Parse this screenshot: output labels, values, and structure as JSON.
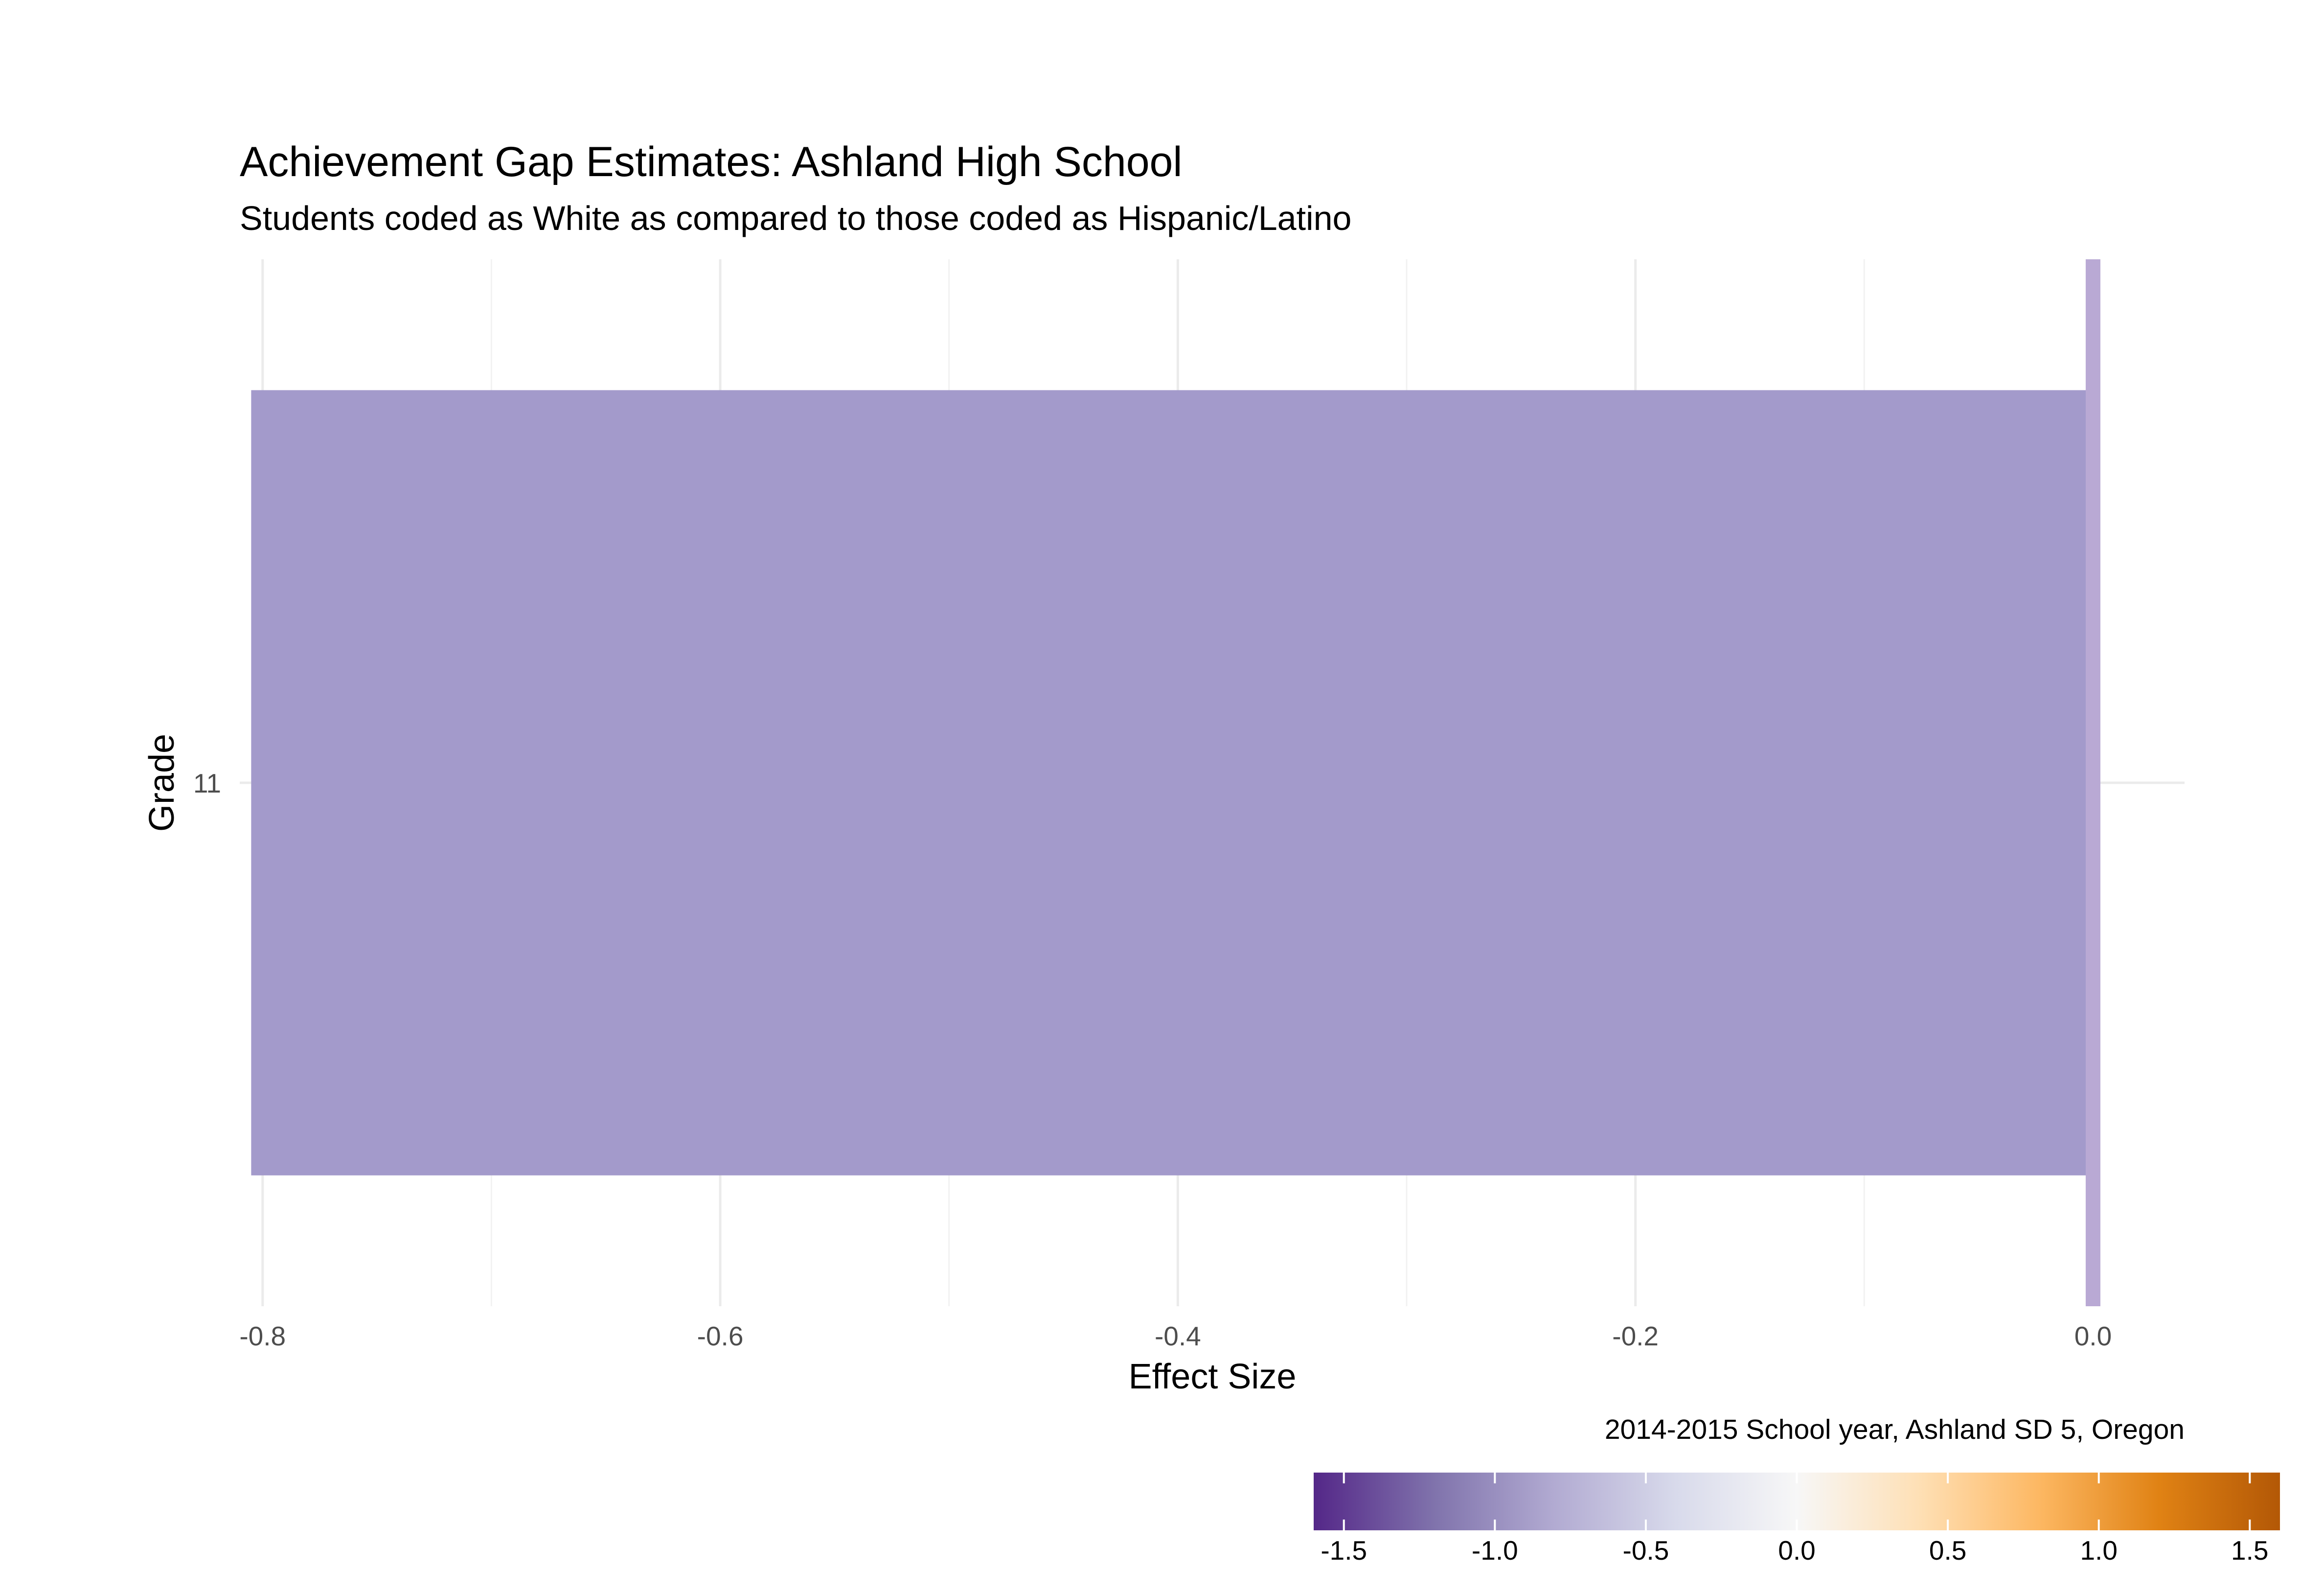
{
  "chart_data": {
    "type": "bar",
    "orientation": "horizontal",
    "title": "Achievement Gap Estimates: Ashland High School",
    "subtitle": "Students coded as White as compared to those coded as Hispanic/Latino",
    "xlabel": "Effect Size",
    "ylabel": "Grade",
    "categories": [
      "11"
    ],
    "values": [
      -0.805
    ],
    "bar_colors": [
      "#a39acb"
    ],
    "xlim": [
      -0.81,
      0.04
    ],
    "x_ticks": [
      -0.8,
      -0.6,
      -0.4,
      -0.2,
      0.0
    ],
    "x_tick_labels": [
      "-0.8",
      "-0.6",
      "-0.4",
      "-0.2",
      "0.0"
    ],
    "x_minor_ticks": [
      -0.7,
      -0.5,
      -0.3,
      -0.1
    ],
    "reference_line": {
      "x": 0.0,
      "color": "#b9a9d4"
    },
    "grid": true,
    "caption": "2014-2015 School year, Ashland SD 5, Oregon",
    "legend": {
      "placement": "bottom-right",
      "type": "colorbar",
      "range": [
        -1.6,
        1.6
      ],
      "ticks": [
        -1.5,
        -1.0,
        -0.5,
        0.0,
        0.5,
        1.0,
        1.5
      ],
      "tick_labels": [
        "-1.5",
        "-1.0",
        "-0.5",
        "0.0",
        "0.5",
        "1.0",
        "1.5"
      ],
      "colors": [
        "#542788",
        "#8073ac",
        "#b2abd2",
        "#d8daeb",
        "#f7f7f7",
        "#fee0b6",
        "#fdb863",
        "#e08214",
        "#b35806"
      ]
    }
  }
}
